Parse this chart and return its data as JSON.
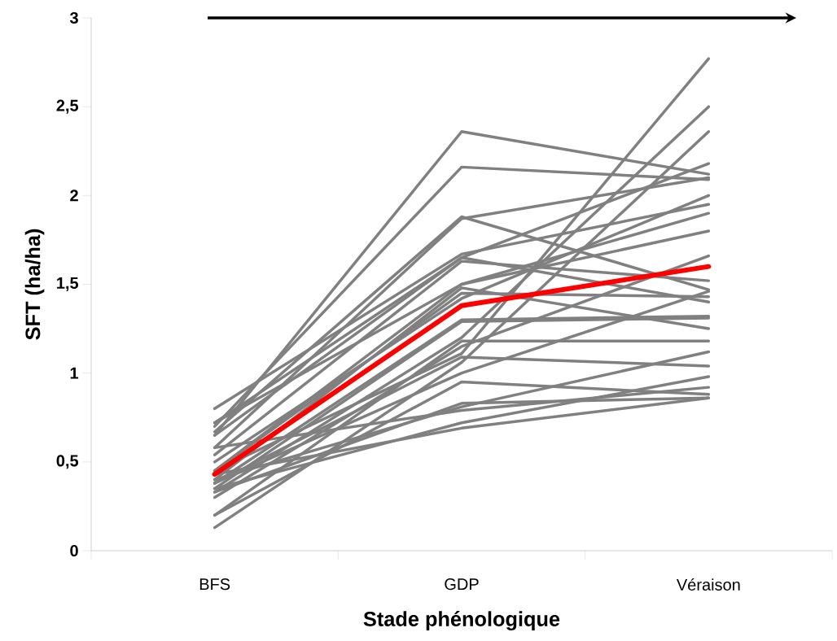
{
  "chart_data": {
    "type": "line",
    "xlabel": "Stade phénologique",
    "ylabel": "SFT   (ha/ha)",
    "categories": [
      "BFS",
      "GDP",
      "Véraison"
    ],
    "ylim": [
      0,
      3
    ],
    "yticks": [
      {
        "value": 0,
        "label": "0"
      },
      {
        "value": 0.5,
        "label": "0,5"
      },
      {
        "value": 1,
        "label": "1"
      },
      {
        "value": 1.5,
        "label": "1,5"
      },
      {
        "value": 2,
        "label": "2"
      },
      {
        "value": 2.5,
        "label": "2,5"
      },
      {
        "value": 3,
        "label": "3"
      }
    ],
    "series": [
      {
        "color": "#808080",
        "values": [
          0.65,
          2.36,
          2.12
        ]
      },
      {
        "color": "#808080",
        "values": [
          0.7,
          2.16,
          2.09
        ]
      },
      {
        "color": "#808080",
        "values": [
          0.67,
          1.88,
          1.47
        ]
      },
      {
        "color": "#808080",
        "values": [
          0.58,
          1.87,
          2.1
        ]
      },
      {
        "color": "#808080",
        "values": [
          0.8,
          1.67,
          1.95
        ]
      },
      {
        "color": "#808080",
        "values": [
          0.72,
          1.65,
          1.4
        ]
      },
      {
        "color": "#808080",
        "values": [
          0.54,
          1.63,
          1.52
        ]
      },
      {
        "color": "#808080",
        "values": [
          0.45,
          1.5,
          1.9
        ]
      },
      {
        "color": "#808080",
        "values": [
          0.4,
          1.48,
          1.25
        ]
      },
      {
        "color": "#808080",
        "values": [
          0.38,
          1.3,
          1.32
        ]
      },
      {
        "color": "#808080",
        "values": [
          0.35,
          1.29,
          1.31
        ]
      },
      {
        "color": "#808080",
        "values": [
          0.33,
          1.2,
          2.5
        ]
      },
      {
        "color": "#808080",
        "values": [
          0.2,
          1.18,
          1.18
        ]
      },
      {
        "color": "#808080",
        "values": [
          0.45,
          1.11,
          2.77
        ]
      },
      {
        "color": "#808080",
        "values": [
          0.38,
          1.09,
          1.04
        ]
      },
      {
        "color": "#808080",
        "values": [
          0.13,
          1.06,
          2.36
        ]
      },
      {
        "color": "#808080",
        "values": [
          0.2,
          0.95,
          0.88
        ]
      },
      {
        "color": "#808080",
        "values": [
          0.33,
          0.83,
          0.86
        ]
      },
      {
        "color": "#808080",
        "values": [
          0.4,
          0.81,
          1.12
        ]
      },
      {
        "color": "#808080",
        "values": [
          0.58,
          0.79,
          0.92
        ]
      },
      {
        "color": "#808080",
        "values": [
          0.35,
          0.72,
          0.98
        ]
      },
      {
        "color": "#808080",
        "values": [
          0.43,
          0.69,
          0.86
        ]
      },
      {
        "color": "#808080",
        "values": [
          0.65,
          1.65,
          2.18
        ]
      },
      {
        "color": "#808080",
        "values": [
          0.72,
          1.5,
          1.8
        ]
      },
      {
        "color": "#808080",
        "values": [
          0.5,
          1.42,
          2.0
        ]
      },
      {
        "color": "#808080",
        "values": [
          0.3,
          1.15,
          1.66
        ]
      },
      {
        "color": "#808080",
        "values": [
          0.45,
          1.45,
          1.43
        ]
      },
      {
        "color": "#808080",
        "values": [
          0.38,
          1.0,
          1.46
        ]
      },
      {
        "color": "#ff0000",
        "values": [
          0.43,
          1.38,
          1.6
        ]
      }
    ]
  }
}
